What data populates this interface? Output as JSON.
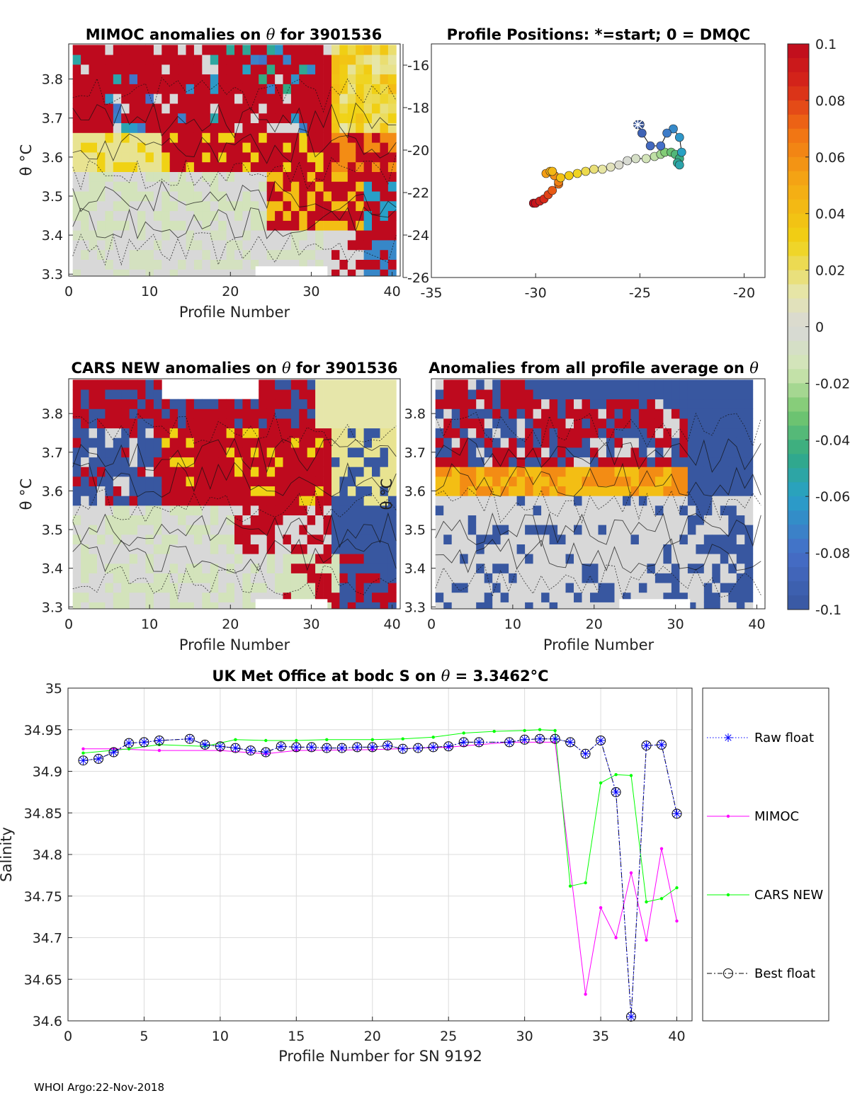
{
  "footer": "WHOI Argo:22-Nov-2018",
  "chart_data": [
    {
      "type": "heatmap",
      "title_prefix": "MIMOC anomalies on",
      "title_symbol": "θ",
      "title_suffix": " for 3901536",
      "xlabel": "Profile Number",
      "ylabel": "θ °C",
      "xlim": [
        0,
        41
      ],
      "ylim": [
        3.295,
        3.89
      ],
      "x_ticks": [
        0,
        10,
        20,
        30,
        40
      ],
      "y_ticks": [
        3.3,
        3.4,
        3.5,
        3.6,
        3.7,
        3.8
      ],
      "profiles": 40,
      "bin_size": 0.025,
      "seed": 7,
      "pattern": "mimoc"
    },
    {
      "type": "scatter",
      "title": "Profile Positions: *=start; 0 = DMQC",
      "xlim": [
        -35,
        -19
      ],
      "ylim": [
        -26,
        -15
      ],
      "x_ticks": [
        -35,
        -30,
        -25,
        -20
      ],
      "y_ticks": [
        -16,
        -18,
        -20,
        -22,
        -24,
        -26
      ],
      "lon": [
        -25.1,
        -25.0,
        -24.9,
        -24.5,
        -24.0,
        -23.7,
        -23.4,
        -23.1,
        -23.0,
        -23.1,
        -23.2,
        -23.1,
        -23.3,
        -23.5,
        -23.8,
        -24.0,
        -24.3,
        -24.7,
        -25.2,
        -25.6,
        -26.0,
        -26.4,
        -26.8,
        -27.2,
        -27.6,
        -28.0,
        -28.4,
        -28.8,
        -29.2,
        -29.3,
        -29.5,
        -29.1,
        -28.9,
        -28.9,
        -29.2,
        -29.4,
        -29.6,
        -29.8,
        -30.0,
        -30.1
      ],
      "lat": [
        -18.8,
        -18.8,
        -19.2,
        -19.8,
        -19.8,
        -19.2,
        -19.0,
        -19.4,
        -20.1,
        -20.7,
        -20.6,
        -20.4,
        -20.2,
        -20.1,
        -20.1,
        -20.2,
        -20.3,
        -20.4,
        -20.4,
        -20.5,
        -20.7,
        -20.8,
        -20.9,
        -20.9,
        -21.0,
        -21.1,
        -21.2,
        -21.3,
        -21.0,
        -21.0,
        -21.1,
        -21.2,
        -21.5,
        -21.6,
        -21.9,
        -22.1,
        -22.3,
        -22.4,
        -22.5,
        -22.5
      ]
    },
    {
      "type": "heatmap",
      "title_prefix": "CARS NEW anomalies on",
      "title_symbol": "θ",
      "title_suffix": " for 3901536",
      "xlabel": "Profile Number",
      "ylabel": "θ °C",
      "xlim": [
        0,
        41
      ],
      "ylim": [
        3.295,
        3.89
      ],
      "x_ticks": [
        0,
        10,
        20,
        30,
        40
      ],
      "y_ticks": [
        3.3,
        3.4,
        3.5,
        3.6,
        3.7,
        3.8
      ],
      "profiles": 40,
      "bin_size": 0.025,
      "seed": 23,
      "pattern": "cars"
    },
    {
      "type": "heatmap",
      "title_prefix": "Anomalies from all profile average on",
      "title_symbol": "θ",
      "title_suffix": "",
      "xlabel": "Profile Number",
      "ylabel": "θ °C",
      "xlim": [
        0,
        41
      ],
      "ylim": [
        3.295,
        3.89
      ],
      "x_ticks": [
        0,
        10,
        20,
        30,
        40
      ],
      "y_ticks": [
        3.3,
        3.4,
        3.5,
        3.6,
        3.7,
        3.8
      ],
      "profiles": 40,
      "bin_size": 0.025,
      "seed": 51,
      "pattern": "avg"
    },
    {
      "type": "colorbar",
      "range": [
        -0.1,
        0.1
      ],
      "tick_labels": [
        "0.1",
        "0.08",
        "0.06",
        "0.04",
        "0.02",
        "0",
        "-0.02",
        "-0.04",
        "-0.06",
        "-0.08",
        "-0.1"
      ],
      "tick_values": [
        0.1,
        0.08,
        0.06,
        0.04,
        0.02,
        0,
        -0.02,
        -0.04,
        -0.06,
        -0.08,
        -0.1
      ]
    },
    {
      "type": "line",
      "title_prefix": "UK Met Office at bodc S on",
      "title_symbol": "θ",
      "title_value": " = 3.3462",
      "title_unit": "°C",
      "xlabel": "Profile Number for SN 9192",
      "ylabel": "Salinity",
      "xlim": [
        0,
        41
      ],
      "ylim": [
        34.6,
        35
      ],
      "x_ticks": [
        0,
        5,
        10,
        15,
        20,
        25,
        30,
        35,
        40
      ],
      "y_ticks": [
        35,
        34.95,
        34.9,
        34.85,
        34.8,
        34.75,
        34.7,
        34.65,
        34.6
      ],
      "y_tick_labels": [
        "35",
        "34.95",
        "34.9",
        "34.85",
        "34.8",
        "34.75",
        "34.7",
        "34.65",
        "34.6"
      ],
      "series": [
        {
          "name": "MIMOC",
          "color": "#ff00ff",
          "style": "solid",
          "marker": "dot",
          "x": [
            1,
            3,
            6,
            10,
            13,
            15,
            20,
            25,
            29,
            32,
            34,
            35,
            36,
            37,
            38,
            39,
            40
          ],
          "values": [
            34.927,
            34.927,
            34.925,
            34.925,
            34.921,
            34.925,
            34.926,
            34.929,
            34.935,
            34.935,
            34.632,
            34.736,
            34.7,
            34.778,
            34.697,
            34.807,
            34.72
          ]
        },
        {
          "name": "CARS NEW",
          "color": "#00ff00",
          "style": "solid",
          "marker": "dot",
          "x": [
            1,
            4,
            6,
            9,
            11,
            13,
            15,
            17,
            20,
            22,
            24,
            26,
            28,
            30,
            31,
            32,
            33,
            34,
            35,
            36,
            37,
            38,
            39,
            40
          ],
          "values": [
            34.922,
            34.927,
            34.932,
            34.93,
            34.938,
            34.937,
            34.937,
            34.938,
            34.938,
            34.939,
            34.941,
            34.946,
            34.948,
            34.949,
            34.95,
            34.949,
            34.762,
            34.766,
            34.886,
            34.896,
            34.895,
            34.743,
            34.747,
            34.76
          ]
        },
        {
          "name": "Best float",
          "color": "#000000",
          "style": "dashdot",
          "marker": "circle",
          "x": [
            1,
            2,
            3,
            4,
            5,
            6,
            8,
            9,
            10,
            11,
            12,
            13,
            14,
            15,
            16,
            17,
            18,
            19,
            20,
            21,
            22,
            23,
            24,
            25,
            26,
            27,
            29,
            30,
            31,
            32,
            33,
            34,
            35,
            36,
            37,
            38,
            39,
            40
          ],
          "values": [
            34.913,
            34.915,
            34.923,
            34.934,
            34.935,
            34.937,
            34.939,
            34.932,
            34.93,
            34.928,
            34.925,
            34.923,
            34.93,
            34.929,
            34.929,
            34.928,
            34.928,
            34.929,
            34.929,
            34.931,
            34.927,
            34.928,
            34.929,
            34.93,
            34.935,
            34.935,
            34.935,
            34.938,
            34.939,
            34.939,
            34.935,
            34.921,
            34.937,
            34.875,
            34.605,
            34.931,
            34.932,
            34.849
          ]
        },
        {
          "name": "Raw float",
          "color": "#0000ff",
          "style": "dotted",
          "marker": "asterisk",
          "x": [
            1,
            2,
            3,
            4,
            5,
            6,
            8,
            9,
            10,
            11,
            12,
            13,
            14,
            15,
            16,
            17,
            18,
            19,
            20,
            21,
            22,
            23,
            24,
            25,
            26,
            27,
            29,
            30,
            31,
            32,
            33,
            34,
            35,
            36,
            37,
            38,
            39,
            40
          ],
          "values": [
            34.913,
            34.915,
            34.923,
            34.934,
            34.935,
            34.937,
            34.939,
            34.932,
            34.93,
            34.928,
            34.925,
            34.923,
            34.93,
            34.929,
            34.929,
            34.928,
            34.928,
            34.929,
            34.929,
            34.931,
            34.927,
            34.928,
            34.929,
            34.93,
            34.935,
            34.935,
            34.935,
            34.938,
            34.939,
            34.939,
            34.935,
            34.921,
            34.937,
            34.875,
            34.605,
            34.931,
            34.932,
            34.849
          ]
        }
      ],
      "legend": [
        "Raw float",
        "MIMOC",
        "CARS NEW",
        "Best float"
      ],
      "legend_position": "right"
    }
  ]
}
